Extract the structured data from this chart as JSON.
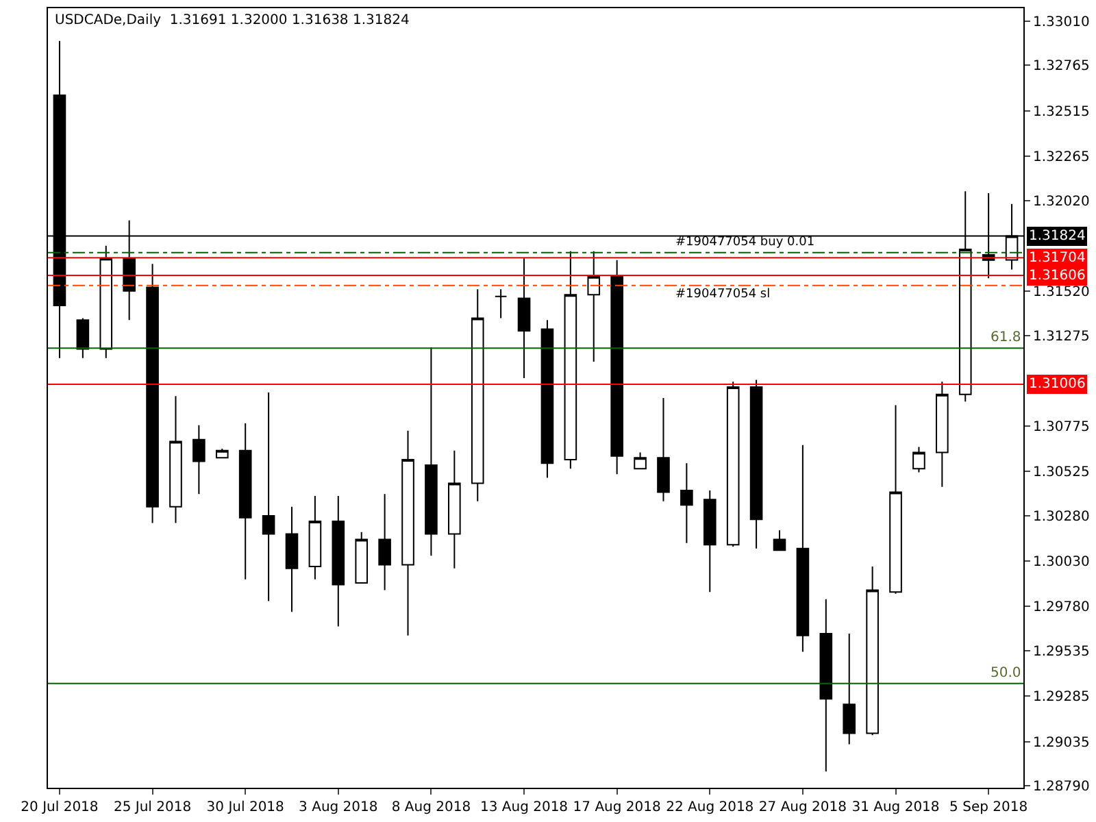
{
  "chart_data": {
    "type": "candlestick",
    "title": "USDCADe,Daily  1.31691 1.32000 1.31638 1.31824",
    "categories": [
      "20 Jul 2018",
      null,
      null,
      null,
      "25 Jul 2018",
      null,
      null,
      null,
      "30 Jul 2018",
      null,
      null,
      null,
      "3 Aug 2018",
      null,
      null,
      null,
      "8 Aug 2018",
      null,
      null,
      null,
      "13 Aug 2018",
      null,
      null,
      null,
      "17 Aug 2018",
      null,
      null,
      null,
      "22 Aug 2018",
      null,
      null,
      null,
      "27 Aug 2018",
      null,
      null,
      null,
      "31 Aug 2018",
      null,
      null,
      null,
      "5 Sep 2018",
      null
    ],
    "ohlc": [
      [
        1.326,
        1.329,
        1.3115,
        1.3144
      ],
      [
        1.3136,
        1.3137,
        1.3115,
        1.312
      ],
      [
        1.312,
        1.3177,
        1.3115,
        1.317
      ],
      [
        1.317,
        1.3191,
        1.3136,
        1.3152
      ],
      [
        1.3154,
        1.3167,
        1.3024,
        1.3033
      ],
      [
        1.3033,
        1.3094,
        1.3024,
        1.3069
      ],
      [
        1.307,
        1.3078,
        1.304,
        1.3058
      ],
      [
        1.306,
        1.3065,
        1.306,
        1.3064
      ],
      [
        1.3064,
        1.3079,
        1.2993,
        1.3027
      ],
      [
        1.3028,
        1.3096,
        1.2981,
        1.3018
      ],
      [
        1.3018,
        1.3033,
        1.2975,
        1.2999
      ],
      [
        1.3,
        1.3039,
        1.2993,
        1.3025
      ],
      [
        1.3025,
        1.3039,
        1.2967,
        1.299
      ],
      [
        1.2991,
        1.3019,
        1.2991,
        1.3015
      ],
      [
        1.3015,
        1.304,
        1.2987,
        1.3001
      ],
      [
        1.3001,
        1.3075,
        1.2962,
        1.3059
      ],
      [
        1.3056,
        1.3121,
        1.3006,
        1.3018
      ],
      [
        1.3018,
        1.3064,
        1.2999,
        1.3046
      ],
      [
        1.3046,
        1.3153,
        1.3036,
        1.3137
      ],
      [
        1.3149,
        1.3153,
        1.3137,
        1.3149
      ],
      [
        1.3148,
        1.317,
        1.3104,
        1.313
      ],
      [
        1.3131,
        1.3136,
        1.3049,
        1.3057
      ],
      [
        1.3059,
        1.3174,
        1.3054,
        1.315
      ],
      [
        1.315,
        1.3174,
        1.3113,
        1.316
      ],
      [
        1.316,
        1.3169,
        1.3051,
        1.3061
      ],
      [
        1.3054,
        1.3063,
        1.3054,
        1.306
      ],
      [
        1.306,
        1.3093,
        1.3036,
        1.3041
      ],
      [
        1.3042,
        1.3057,
        1.3013,
        1.3034
      ],
      [
        1.3037,
        1.3042,
        1.2986,
        1.3012
      ],
      [
        1.3012,
        1.3102,
        1.3011,
        1.3099
      ],
      [
        1.3099,
        1.3103,
        1.301,
        1.3026
      ],
      [
        1.3015,
        1.302,
        1.3009,
        1.3009
      ],
      [
        1.301,
        1.3067,
        1.2953,
        1.2962
      ],
      [
        1.2963,
        1.2982,
        1.2887,
        1.2927
      ],
      [
        1.2924,
        1.2963,
        1.2902,
        1.2908
      ],
      [
        1.2908,
        1.3,
        1.2907,
        1.2987
      ],
      [
        1.2986,
        1.3089,
        1.2985,
        1.3041
      ],
      [
        1.3054,
        1.3066,
        1.3052,
        1.3063
      ],
      [
        1.3063,
        1.3102,
        1.3044,
        1.3095
      ],
      [
        1.3095,
        1.3207,
        1.3091,
        1.3175
      ],
      [
        1.3172,
        1.3206,
        1.3159,
        1.3169
      ],
      [
        1.31691,
        1.32,
        1.31638,
        1.31824
      ]
    ],
    "ylim": [
      1.2878,
      1.3308
    ],
    "yticks": [
      {
        "value": 1.3301,
        "label": "1.33010"
      },
      {
        "value": 1.32765,
        "label": "1.32765"
      },
      {
        "value": 1.32515,
        "label": "1.32515"
      },
      {
        "value": 1.32265,
        "label": "1.32265"
      },
      {
        "value": 1.3202,
        "label": "1.32020"
      },
      {
        "value": 1.3152,
        "label": "1.31520"
      },
      {
        "value": 1.31275,
        "label": "1.31275"
      },
      {
        "value": 1.30775,
        "label": "1.30775"
      },
      {
        "value": 1.30525,
        "label": "1.30525"
      },
      {
        "value": 1.3028,
        "label": "1.30280"
      },
      {
        "value": 1.3003,
        "label": "1.30030"
      },
      {
        "value": 1.2978,
        "label": "1.29780"
      },
      {
        "value": 1.29535,
        "label": "1.29535"
      },
      {
        "value": 1.29285,
        "label": "1.29285"
      },
      {
        "value": 1.29035,
        "label": "1.29035"
      },
      {
        "value": 1.2879,
        "label": "1.28790"
      }
    ],
    "ref_lines": [
      {
        "axis": "y",
        "value": 1.31824,
        "label": "1.31824",
        "color": "#000000",
        "line_style": "solid"
      },
      {
        "axis": "y",
        "value": 1.31732,
        "label": "#190477054 buy 0.01",
        "color": "#006400",
        "line_style": "dashed"
      },
      {
        "axis": "y",
        "value": 1.31704,
        "label": "1.31704",
        "color": "#ff0000",
        "line_style": "solid"
      },
      {
        "axis": "y",
        "value": 1.31606,
        "label": "1.31606",
        "color": "#ff0000",
        "line_style": "solid"
      },
      {
        "axis": "y",
        "value": 1.31551,
        "label": "#190477054 sl",
        "color": "#ff4500",
        "line_style": "dashed"
      },
      {
        "axis": "y",
        "value": 1.31205,
        "color": "#006400",
        "line_style": "solid"
      },
      {
        "axis": "y",
        "value": 1.31006,
        "label": "1.31006",
        "color": "#ff0000",
        "line_style": "solid"
      },
      {
        "axis": "y",
        "value": 1.29355,
        "color": "#006400",
        "line_style": "solid"
      }
    ],
    "annotations": [
      {
        "text": "61.8",
        "y": 1.31205
      },
      {
        "text": "50.0",
        "y": 1.29355
      }
    ]
  }
}
